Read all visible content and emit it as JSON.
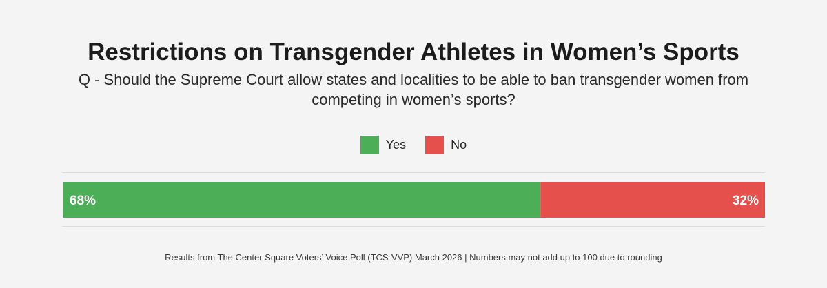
{
  "chart_data": {
    "type": "bar",
    "orientation": "horizontal-stacked",
    "title": "Restrictions on Transgender Athletes in Women’s Sports",
    "subtitle": "Q - Should the Supreme Court allow states and localities to be able to ban transgender women from competing in women’s sports?",
    "categories": [
      ""
    ],
    "series": [
      {
        "name": "Yes",
        "values": [
          68
        ],
        "label": "68%",
        "color": "#4caf58"
      },
      {
        "name": "No",
        "values": [
          32
        ],
        "label": "32%",
        "color": "#e5504c"
      }
    ],
    "xlim": [
      0,
      100
    ],
    "legend_position": "top-center",
    "grid": false
  },
  "footnote": "Results from The Center Square Voters’ Voice Poll (TCS-VVP) March 2026 | Numbers may not add up to 100 due to rounding"
}
